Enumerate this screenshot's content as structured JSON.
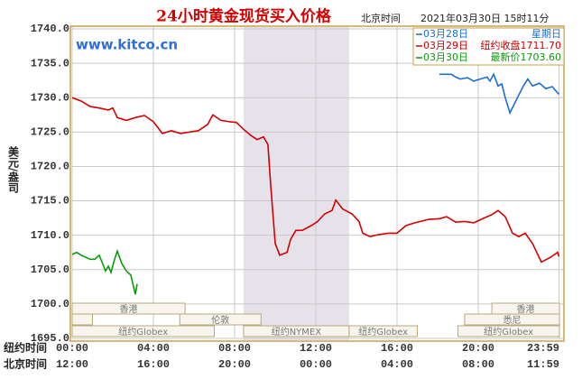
{
  "chart_data": {
    "type": "line",
    "title": "24小时黄金现货买入价格",
    "timezone_label": "北京时间",
    "timestamp": "2021年03月30日 15时11分",
    "watermark": "www.kitco.cn",
    "y_label": "美元/盎司",
    "x_label": "纽约时间",
    "x2_label": "北京时间",
    "grid": true,
    "ylim": [
      1695,
      1740
    ],
    "yticks": [
      {
        "value": 1740,
        "label": "1740.0"
      },
      {
        "value": 1735,
        "label": "1735.0"
      },
      {
        "value": 1730,
        "label": "1730.0"
      },
      {
        "value": 1725,
        "label": "1725.0"
      },
      {
        "value": 1720,
        "label": "1720.0"
      },
      {
        "value": 1715,
        "label": "1715.0"
      },
      {
        "value": 1710,
        "label": "1710.0"
      },
      {
        "value": 1705,
        "label": "1705.0"
      },
      {
        "value": 1700,
        "label": "1700.0"
      },
      {
        "value": 1695,
        "label": "1695.0"
      }
    ],
    "xlim": [
      0,
      24
    ],
    "xticks": [
      {
        "value": 0,
        "label": "00:00"
      },
      {
        "value": 4,
        "label": "04:00"
      },
      {
        "value": 8,
        "label": "08:00"
      },
      {
        "value": 12,
        "label": "12:00"
      },
      {
        "value": 16,
        "label": "16:00"
      },
      {
        "value": 20,
        "label": "20:00"
      },
      {
        "value": 23.98,
        "label": "23:59"
      }
    ],
    "x2ticks": [
      {
        "value": 0,
        "label": "12:00"
      },
      {
        "value": 4,
        "label": "16:00"
      },
      {
        "value": 8,
        "label": "20:00"
      },
      {
        "value": 12,
        "label": "00:00"
      },
      {
        "value": 16,
        "label": "04:00"
      },
      {
        "value": 20,
        "label": "08:00"
      },
      {
        "value": 23.98,
        "label": "11:59"
      }
    ],
    "highlight": [
      8.44,
      13.64
    ],
    "sessions": [
      {
        "label": "香港",
        "start": 0,
        "end": 5.56,
        "row": 0
      },
      {
        "label": "香港",
        "start": 20.67,
        "end": 24,
        "row": 0
      },
      {
        "start": 0,
        "end": 1,
        "row": 1
      },
      {
        "label": "伦敦",
        "start": 5.3,
        "end": 9.3,
        "row": 1
      },
      {
        "label": "悉尼",
        "start": 19.33,
        "end": 24,
        "row": 1
      },
      {
        "label": "纽约Globex",
        "start": 0,
        "end": 7,
        "row": 2
      },
      {
        "label": "纽约NYMEX",
        "start": 8.44,
        "end": 13.64,
        "row": 2
      },
      {
        "label": "纽约Globex",
        "start": 13.64,
        "end": 17,
        "row": 2
      },
      {
        "label": "纽约Globex",
        "start": 19,
        "end": 24,
        "row": 2
      }
    ],
    "series": [
      {
        "name": "03月28日",
        "note": "星期日",
        "color": "#1a6fd0",
        "x": [
          18.09,
          18.67,
          18.89,
          19.11,
          19.47,
          19.78,
          20.09,
          20.44,
          20.58,
          20.76,
          20.98,
          21.16,
          21.33,
          21.56,
          21.78,
          22,
          22.22,
          22.44,
          22.67,
          23.02,
          23.33,
          23.64,
          23.91,
          23.98
        ],
        "values": [
          1733.4,
          1733.4,
          1733.0,
          1732.7,
          1732.9,
          1732.4,
          1732.7,
          1733.0,
          1732.4,
          1733.4,
          1731.7,
          1732.0,
          1730.0,
          1727.8,
          1729.1,
          1730.4,
          1731.7,
          1732.7,
          1731.7,
          1732.1,
          1731.3,
          1731.6,
          1730.7,
          1730.5
        ]
      },
      {
        "name": "03月29日",
        "note": "纽约收盘1711.70",
        "color": "#d40000",
        "x": [
          0,
          0.44,
          0.89,
          1.33,
          1.78,
          2,
          2.22,
          2.67,
          3.11,
          3.56,
          4,
          4.44,
          4.89,
          5.33,
          5.78,
          6.22,
          6.67,
          6.93,
          7.33,
          7.78,
          8.09,
          8.44,
          8.8,
          9.11,
          9.42,
          9.64,
          9.78,
          10,
          10.22,
          10.58,
          10.76,
          11.02,
          11.33,
          11.78,
          12.09,
          12.44,
          12.8,
          12.98,
          13.33,
          13.78,
          14.13,
          14.31,
          14.67,
          15.11,
          15.56,
          16,
          16.44,
          16.89,
          17.56,
          18.09,
          18.44,
          18.89,
          19.33,
          19.78,
          20.22,
          20.67,
          20.98,
          21.33,
          21.69,
          22,
          22.31,
          22.67,
          23.11,
          23.56,
          23.91,
          23.98
        ],
        "values": [
          1730.0,
          1729.5,
          1728.7,
          1728.5,
          1728.2,
          1728.5,
          1727.1,
          1726.7,
          1727.1,
          1727.4,
          1726.5,
          1724.8,
          1725.2,
          1724.8,
          1725.0,
          1725.2,
          1726.1,
          1727.5,
          1726.7,
          1726.5,
          1726.4,
          1725.4,
          1724.5,
          1723.9,
          1724.3,
          1723.2,
          1717.3,
          1708.8,
          1707.1,
          1707.5,
          1709.4,
          1710.7,
          1710.7,
          1711.4,
          1712.0,
          1713.1,
          1713.6,
          1715.1,
          1713.8,
          1713.1,
          1712.0,
          1710.3,
          1709.8,
          1710.1,
          1710.3,
          1710.3,
          1711.4,
          1711.8,
          1712.3,
          1712.4,
          1712.7,
          1711.9,
          1712.0,
          1711.8,
          1712.4,
          1713.0,
          1713.6,
          1712.7,
          1710.3,
          1709.8,
          1710.3,
          1708.8,
          1706.1,
          1706.8,
          1707.5,
          1706.9
        ]
      },
      {
        "name": "03月30日",
        "note": "最新价1703.60",
        "color": "#0a9a0a",
        "x": [
          0,
          0.22,
          0.44,
          0.67,
          0.89,
          1.11,
          1.33,
          1.47,
          1.64,
          1.78,
          1.91,
          2.09,
          2.22,
          2.44,
          2.67,
          2.89,
          3.11,
          3.2
        ],
        "values": [
          1707.2,
          1707.5,
          1707.1,
          1706.8,
          1706.5,
          1706.5,
          1707.1,
          1706.1,
          1704.8,
          1705.5,
          1704.6,
          1706.5,
          1707.7,
          1705.9,
          1704.8,
          1704.2,
          1701.4,
          1702.9
        ]
      }
    ]
  }
}
